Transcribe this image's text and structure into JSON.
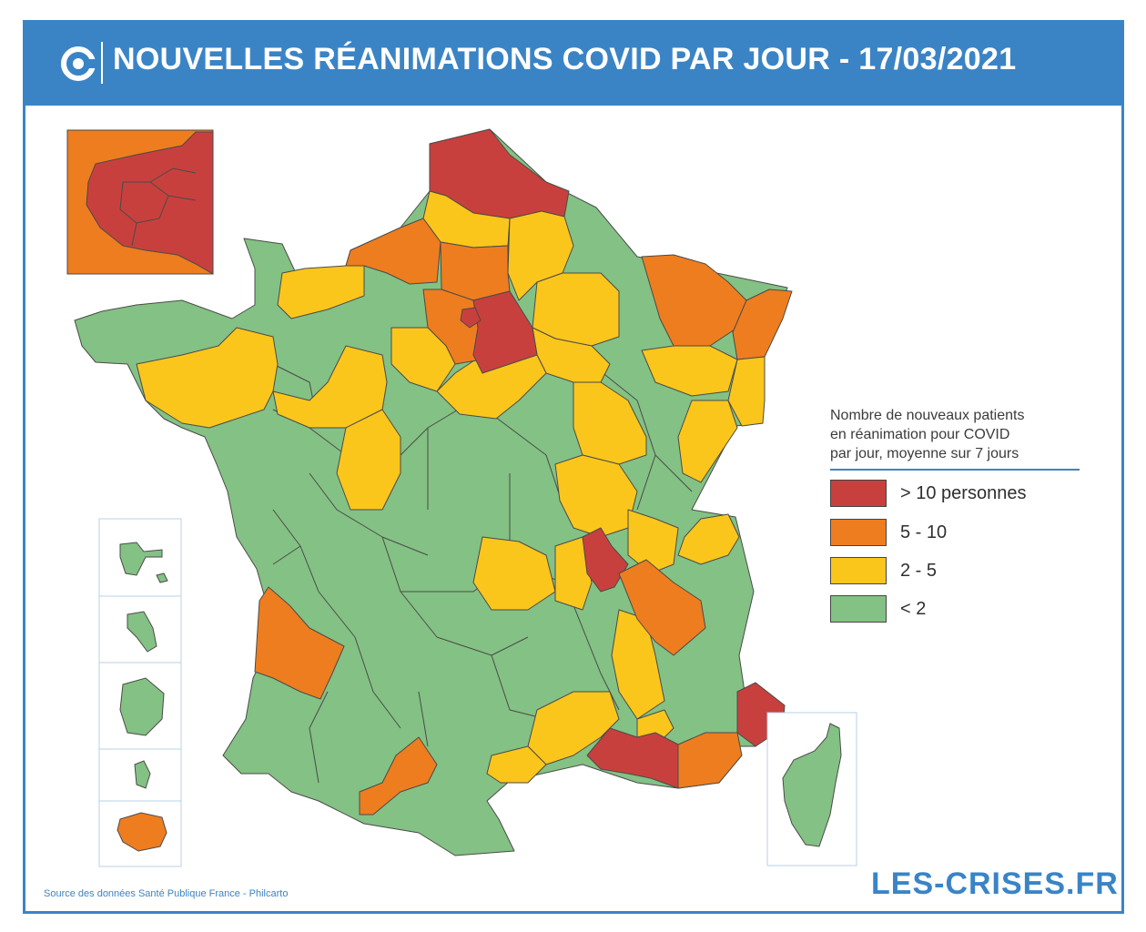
{
  "header": {
    "title": "NOUVELLES RÉANIMATIONS COVID PAR JOUR - 17/03/2021"
  },
  "legend": {
    "title_lines": [
      "Nombre de nouveaux patients",
      "en réanimation pour COVID",
      "par jour, moyenne sur 7 jours"
    ],
    "items": [
      {
        "label": "> 10 personnes",
        "color": "#c8403d"
      },
      {
        "label": "5 - 10",
        "color": "#ee7d1f"
      },
      {
        "label": "2 - 5",
        "color": "#fbc61b"
      },
      {
        "label": "< 2",
        "color": "#84c184"
      }
    ]
  },
  "footer": {
    "source": "Source des données Santé Publique France - Philcarto",
    "brand": "LES-CRISES.FR"
  },
  "colors": {
    "accent": "#3a84c6",
    "red": "#c8403d",
    "orange": "#ee7d1f",
    "yellow": "#fbc61b",
    "green": "#84c184",
    "stroke": "#4a4a4a"
  },
  "map_regions": [
    {
      "name": "nord-pas-de-calais",
      "category": "> 10 personnes"
    },
    {
      "name": "aisne",
      "category": "2 - 5"
    },
    {
      "name": "somme",
      "category": "2 - 5"
    },
    {
      "name": "seine-maritime",
      "category": "5 - 10"
    },
    {
      "name": "oise",
      "category": "5 - 10"
    },
    {
      "name": "ardennes",
      "category": "< 2"
    },
    {
      "name": "marne",
      "category": "2 - 5"
    },
    {
      "name": "moselle",
      "category": "5 - 10"
    },
    {
      "name": "bas-rhin",
      "category": "5 - 10"
    },
    {
      "name": "haut-rhin",
      "category": "2 - 5"
    },
    {
      "name": "ile-de-france-core",
      "category": "> 10 personnes"
    },
    {
      "name": "seine-et-marne",
      "category": "> 10 personnes"
    },
    {
      "name": "bouches-du-rhone",
      "category": "> 10 personnes"
    },
    {
      "name": "alpes-maritimes",
      "category": "> 10 personnes"
    },
    {
      "name": "rhone",
      "category": "> 10 personnes"
    },
    {
      "name": "var",
      "category": "5 - 10"
    },
    {
      "name": "isere",
      "category": "5 - 10"
    },
    {
      "name": "gironde",
      "category": "5 - 10"
    },
    {
      "name": "haute-garonne",
      "category": "5 - 10"
    },
    {
      "name": "la-reunion",
      "category": "5 - 10"
    },
    {
      "name": "bretagne",
      "category": "2 - 5"
    },
    {
      "name": "corse",
      "category": "< 2"
    }
  ]
}
